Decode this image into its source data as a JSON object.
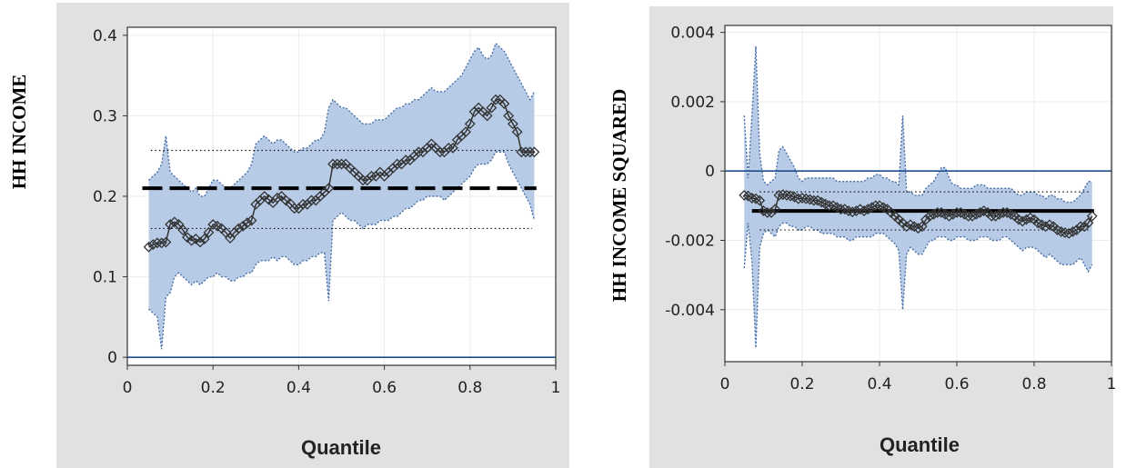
{
  "charts": [
    {
      "type": "line",
      "ylabel": "HH INCOME",
      "xlabel": "Quantile",
      "xlim": [
        0,
        1
      ],
      "ylim": [
        -0.01,
        0.41
      ],
      "xticks": [
        "0",
        "0.2",
        "0.4",
        "0.6",
        "0.8",
        "1"
      ],
      "yticks": [
        "0",
        "0.1",
        "0.2",
        "0.3",
        "0.4"
      ],
      "xtick_values": [
        0,
        0.2,
        0.4,
        0.6,
        0.8,
        1
      ],
      "ytick_values": [
        0,
        0.1,
        0.2,
        0.3,
        0.4
      ],
      "zero_line": 0,
      "ols_estimate": 0.21,
      "ols_ci": [
        0.16,
        0.257
      ],
      "ols_xrange": [
        0.035,
        0.955
      ],
      "ols_style": "dashed",
      "colors": {
        "band": "#b7cbe6",
        "band_edge": "#4a6fa5",
        "zero_line": "#1f4e8c",
        "points": "#333333"
      },
      "chart_data": {
        "x": [
          0.05,
          0.06,
          0.07,
          0.08,
          0.09,
          0.1,
          0.11,
          0.12,
          0.13,
          0.14,
          0.15,
          0.16,
          0.17,
          0.18,
          0.19,
          0.2,
          0.21,
          0.22,
          0.23,
          0.24,
          0.25,
          0.26,
          0.27,
          0.28,
          0.29,
          0.3,
          0.31,
          0.32,
          0.33,
          0.34,
          0.35,
          0.36,
          0.37,
          0.38,
          0.39,
          0.4,
          0.41,
          0.42,
          0.43,
          0.44,
          0.45,
          0.46,
          0.47,
          0.48,
          0.49,
          0.5,
          0.51,
          0.52,
          0.53,
          0.54,
          0.55,
          0.56,
          0.57,
          0.58,
          0.59,
          0.6,
          0.61,
          0.62,
          0.63,
          0.64,
          0.65,
          0.66,
          0.67,
          0.68,
          0.69,
          0.7,
          0.71,
          0.72,
          0.73,
          0.74,
          0.75,
          0.76,
          0.77,
          0.78,
          0.79,
          0.8,
          0.81,
          0.82,
          0.83,
          0.84,
          0.85,
          0.86,
          0.87,
          0.88,
          0.89,
          0.9,
          0.91,
          0.92,
          0.93,
          0.94,
          0.95
        ],
        "y": [
          0.137,
          0.14,
          0.142,
          0.142,
          0.143,
          0.165,
          0.168,
          0.165,
          0.158,
          0.149,
          0.145,
          0.147,
          0.143,
          0.147,
          0.155,
          0.165,
          0.163,
          0.16,
          0.155,
          0.148,
          0.155,
          0.16,
          0.163,
          0.167,
          0.17,
          0.19,
          0.195,
          0.2,
          0.196,
          0.192,
          0.198,
          0.2,
          0.195,
          0.191,
          0.185,
          0.185,
          0.19,
          0.19,
          0.195,
          0.195,
          0.2,
          0.205,
          0.21,
          0.24,
          0.24,
          0.24,
          0.24,
          0.235,
          0.23,
          0.225,
          0.22,
          0.22,
          0.225,
          0.225,
          0.23,
          0.225,
          0.23,
          0.235,
          0.24,
          0.24,
          0.245,
          0.245,
          0.25,
          0.255,
          0.255,
          0.26,
          0.265,
          0.26,
          0.255,
          0.255,
          0.26,
          0.26,
          0.27,
          0.275,
          0.28,
          0.29,
          0.305,
          0.31,
          0.305,
          0.3,
          0.31,
          0.32,
          0.32,
          0.315,
          0.3,
          0.29,
          0.28,
          0.255,
          0.255,
          0.255,
          0.255
        ],
        "lower": [
          0.06,
          0.055,
          0.05,
          0.01,
          0.075,
          0.08,
          0.1,
          0.105,
          0.1,
          0.095,
          0.09,
          0.095,
          0.09,
          0.095,
          0.1,
          0.1,
          0.105,
          0.1,
          0.1,
          0.095,
          0.095,
          0.1,
          0.1,
          0.105,
          0.105,
          0.115,
          0.12,
          0.12,
          0.12,
          0.125,
          0.12,
          0.125,
          0.125,
          0.12,
          0.115,
          0.115,
          0.12,
          0.12,
          0.125,
          0.125,
          0.13,
          0.13,
          0.07,
          0.17,
          0.175,
          0.18,
          0.175,
          0.17,
          0.17,
          0.165,
          0.16,
          0.165,
          0.165,
          0.165,
          0.17,
          0.17,
          0.17,
          0.175,
          0.175,
          0.18,
          0.185,
          0.185,
          0.19,
          0.195,
          0.195,
          0.2,
          0.2,
          0.2,
          0.2,
          0.195,
          0.2,
          0.205,
          0.21,
          0.215,
          0.22,
          0.225,
          0.235,
          0.24,
          0.24,
          0.24,
          0.245,
          0.255,
          0.255,
          0.255,
          0.24,
          0.23,
          0.22,
          0.21,
          0.2,
          0.19,
          0.17
        ],
        "upper": [
          0.22,
          0.225,
          0.23,
          0.24,
          0.275,
          0.23,
          0.225,
          0.22,
          0.215,
          0.21,
          0.205,
          0.21,
          0.2,
          0.2,
          0.21,
          0.22,
          0.22,
          0.215,
          0.21,
          0.21,
          0.215,
          0.22,
          0.225,
          0.23,
          0.24,
          0.265,
          0.27,
          0.275,
          0.27,
          0.265,
          0.27,
          0.27,
          0.265,
          0.26,
          0.255,
          0.255,
          0.26,
          0.26,
          0.265,
          0.27,
          0.27,
          0.28,
          0.31,
          0.32,
          0.315,
          0.31,
          0.31,
          0.305,
          0.3,
          0.295,
          0.29,
          0.29,
          0.29,
          0.295,
          0.295,
          0.295,
          0.3,
          0.305,
          0.31,
          0.31,
          0.315,
          0.315,
          0.32,
          0.32,
          0.325,
          0.33,
          0.335,
          0.33,
          0.33,
          0.33,
          0.335,
          0.34,
          0.345,
          0.35,
          0.36,
          0.37,
          0.38,
          0.385,
          0.375,
          0.37,
          0.375,
          0.39,
          0.385,
          0.38,
          0.37,
          0.36,
          0.35,
          0.34,
          0.33,
          0.32,
          0.33
        ]
      }
    },
    {
      "type": "line",
      "ylabel": "HH INCOME SQUARED",
      "xlabel": "Quantile",
      "xlim": [
        0,
        1
      ],
      "ylim": [
        -0.0055,
        0.0042
      ],
      "xticks": [
        "0",
        "0.2",
        "0.4",
        "0.6",
        "0.8",
        "1"
      ],
      "yticks": [
        "0.004",
        "0.002",
        "0",
        "-0.002",
        "-0.004"
      ],
      "xtick_values": [
        0,
        0.2,
        0.4,
        0.6,
        0.8,
        1
      ],
      "ytick_values": [
        0.004,
        0.002,
        0,
        -0.002,
        -0.004
      ],
      "zero_line": 0,
      "ols_estimate": -0.00115,
      "ols_ci": [
        -0.0006,
        -0.0017
      ],
      "ols_xrange": [
        0.07,
        0.955
      ],
      "ols_style": "solid",
      "colors": {
        "band": "#b7cbe6",
        "band_edge": "#4a6fa5",
        "zero_line": "#1f4e8c",
        "points": "#333333"
      },
      "chart_data": {
        "x": [
          0.05,
          0.06,
          0.07,
          0.08,
          0.09,
          0.1,
          0.11,
          0.12,
          0.13,
          0.14,
          0.15,
          0.16,
          0.17,
          0.18,
          0.19,
          0.2,
          0.21,
          0.22,
          0.23,
          0.24,
          0.25,
          0.26,
          0.27,
          0.28,
          0.29,
          0.3,
          0.31,
          0.32,
          0.33,
          0.34,
          0.35,
          0.36,
          0.37,
          0.38,
          0.39,
          0.4,
          0.41,
          0.42,
          0.43,
          0.44,
          0.45,
          0.46,
          0.47,
          0.48,
          0.49,
          0.5,
          0.51,
          0.52,
          0.53,
          0.54,
          0.55,
          0.56,
          0.57,
          0.58,
          0.59,
          0.6,
          0.61,
          0.62,
          0.63,
          0.64,
          0.65,
          0.66,
          0.67,
          0.68,
          0.69,
          0.7,
          0.71,
          0.72,
          0.73,
          0.74,
          0.75,
          0.76,
          0.77,
          0.78,
          0.79,
          0.8,
          0.81,
          0.82,
          0.83,
          0.84,
          0.85,
          0.86,
          0.87,
          0.88,
          0.89,
          0.9,
          0.91,
          0.92,
          0.93,
          0.94,
          0.95
        ],
        "y": [
          -0.0007,
          -0.00072,
          -0.00078,
          -0.0008,
          -0.00085,
          -0.00115,
          -0.0012,
          -0.0012,
          -0.0011,
          -0.0007,
          -0.00068,
          -0.0007,
          -0.00072,
          -0.00075,
          -0.0008,
          -0.00078,
          -0.0008,
          -0.00082,
          -0.00085,
          -0.00085,
          -0.0009,
          -0.00095,
          -0.001,
          -0.001,
          -0.00105,
          -0.0011,
          -0.0011,
          -0.00115,
          -0.00118,
          -0.00115,
          -0.0011,
          -0.00115,
          -0.0011,
          -0.00105,
          -0.001,
          -0.001,
          -0.00105,
          -0.0011,
          -0.0012,
          -0.0013,
          -0.0014,
          -0.0015,
          -0.0016,
          -0.00155,
          -0.0016,
          -0.00165,
          -0.0016,
          -0.0014,
          -0.0013,
          -0.00125,
          -0.0012,
          -0.0012,
          -0.00125,
          -0.0013,
          -0.00125,
          -0.0012,
          -0.0012,
          -0.00125,
          -0.0013,
          -0.0013,
          -0.00125,
          -0.0012,
          -0.00115,
          -0.0012,
          -0.0013,
          -0.0013,
          -0.00125,
          -0.0012,
          -0.0012,
          -0.00125,
          -0.0013,
          -0.0014,
          -0.00145,
          -0.0014,
          -0.00135,
          -0.0014,
          -0.0015,
          -0.00155,
          -0.0016,
          -0.00155,
          -0.0016,
          -0.0017,
          -0.00175,
          -0.00178,
          -0.0018,
          -0.00175,
          -0.0017,
          -0.0016,
          -0.0016,
          -0.0015,
          -0.0013
        ],
        "lower": [
          -0.0028,
          -0.0015,
          -0.0026,
          -0.0051,
          -0.0022,
          -0.0018,
          -0.0017,
          -0.0018,
          -0.0019,
          -0.0016,
          -0.0015,
          -0.0015,
          -0.0016,
          -0.0016,
          -0.0017,
          -0.0017,
          -0.0016,
          -0.0016,
          -0.0017,
          -0.0017,
          -0.0018,
          -0.0018,
          -0.0018,
          -0.0018,
          -0.0019,
          -0.0019,
          -0.0019,
          -0.002,
          -0.002,
          -0.0019,
          -0.0019,
          -0.0019,
          -0.0019,
          -0.0019,
          -0.0018,
          -0.0018,
          -0.0018,
          -0.0019,
          -0.002,
          -0.0021,
          -0.0023,
          -0.004,
          -0.0024,
          -0.0022,
          -0.0023,
          -0.0024,
          -0.0024,
          -0.0022,
          -0.002,
          -0.002,
          -0.0019,
          -0.0019,
          -0.0019,
          -0.002,
          -0.002,
          -0.0019,
          -0.0019,
          -0.0019,
          -0.002,
          -0.002,
          -0.002,
          -0.0019,
          -0.0019,
          -0.0019,
          -0.002,
          -0.002,
          -0.002,
          -0.0019,
          -0.0019,
          -0.002,
          -0.0021,
          -0.0022,
          -0.0023,
          -0.0022,
          -0.0022,
          -0.0022,
          -0.0023,
          -0.0024,
          -0.0025,
          -0.0024,
          -0.0025,
          -0.0026,
          -0.0027,
          -0.0027,
          -0.0027,
          -0.0027,
          -0.0026,
          -0.0025,
          -0.0027,
          -0.0029,
          -0.0027
        ],
        "upper": [
          0.0016,
          -0.0002,
          0.0016,
          0.0036,
          0.0005,
          -0.0003,
          -0.0004,
          -0.0003,
          -0.0002,
          0.0006,
          0.0007,
          0.0005,
          0.0003,
          0.0001,
          -0.0002,
          -0.0003,
          -0.0002,
          -0.0002,
          -0.0002,
          -0.0002,
          -0.0002,
          -0.0002,
          -0.0002,
          -0.0002,
          -0.0003,
          -0.0003,
          -0.0003,
          -0.0003,
          -0.0003,
          -0.0003,
          -0.0003,
          -0.0003,
          -0.0002,
          -0.0002,
          -0.0001,
          -0.0001,
          -0.0002,
          -0.0002,
          -0.0003,
          -0.0003,
          -0.0004,
          0.0016,
          -0.0006,
          -0.0006,
          -0.0007,
          -0.0007,
          -0.0007,
          -0.0005,
          -0.0004,
          -0.0003,
          -0.0001,
          0.0001,
          0.0001,
          -0.0002,
          -0.0004,
          -0.0004,
          -0.0005,
          -0.0005,
          -0.0005,
          -0.0005,
          -0.0004,
          -0.0004,
          -0.0004,
          -0.0005,
          -0.0005,
          -0.0005,
          -0.0005,
          -0.0005,
          -0.0005,
          -0.0005,
          -0.0006,
          -0.0007,
          -0.0007,
          -0.0006,
          -0.0006,
          -0.0006,
          -0.0007,
          -0.0007,
          -0.0008,
          -0.0007,
          -0.0007,
          -0.0008,
          -0.0008,
          -0.0009,
          -0.0009,
          -0.0009,
          -0.0008,
          -0.0007,
          -0.0005,
          -0.0003,
          -0.0003
        ]
      }
    }
  ]
}
